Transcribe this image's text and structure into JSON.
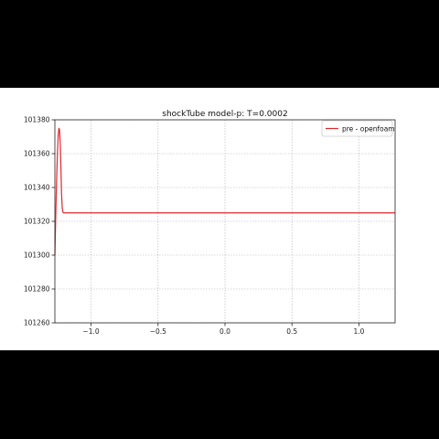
{
  "chart_data": {
    "type": "line",
    "title": "shockTube model-p: T=0.0002",
    "xlabel": "",
    "ylabel": "",
    "xlim": [
      -1.27,
      1.27
    ],
    "ylim": [
      101260,
      101380
    ],
    "x_ticks": [
      -1.0,
      -0.5,
      0.0,
      0.5,
      1.0
    ],
    "x_tick_labels": [
      "−1.0",
      "−0.5",
      "0.0",
      "0.5",
      "1.0"
    ],
    "y_ticks": [
      101260,
      101280,
      101300,
      101320,
      101340,
      101360,
      101380
    ],
    "y_tick_labels": [
      "101260",
      "101280",
      "101300",
      "101320",
      "101340",
      "101360",
      "101380"
    ],
    "grid": true,
    "legend_position": "top-right",
    "series": [
      {
        "name": "pre - openfoam",
        "color": "#e0282e",
        "x": [
          -1.27,
          -1.265,
          -1.26,
          -1.255,
          -1.25,
          -1.245,
          -1.24,
          -1.235,
          -1.23,
          -1.225,
          -1.22,
          -1.215,
          -1.21,
          -1.205,
          -1.2,
          -1.195,
          -1.19,
          -1.185,
          -1.18,
          -1.175,
          -1.17,
          -1.0,
          -0.5,
          0.0,
          0.5,
          1.0,
          1.27
        ],
        "values": [
          101300,
          101318,
          101335,
          101350,
          101362,
          101371,
          101375,
          101374,
          101366,
          101352,
          101336,
          101328,
          101325.5,
          101325,
          101325,
          101325,
          101325,
          101325,
          101325,
          101325,
          101325,
          101325,
          101325,
          101325,
          101325,
          101325,
          101325
        ]
      }
    ]
  }
}
